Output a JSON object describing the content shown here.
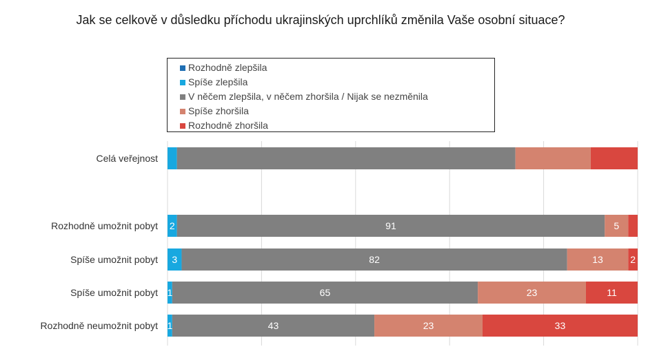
{
  "chart_data": {
    "type": "bar",
    "orientation": "horizontal",
    "stacked": true,
    "title": "Jak se celkově v důsledku příchodu ukrajinských uprchlíků změnila Vaše osobní situace?",
    "categories": [
      "Celá veřejnost",
      "",
      "Rozhodně umožnit pobyt",
      "Spíše umožnit pobyt",
      "Spíše umožnit pobyt",
      "Rozhodně neumožnit pobyt"
    ],
    "xlim": [
      0,
      100
    ],
    "grid": true,
    "legend_position": "top",
    "series": [
      {
        "name": "Rozhodně zlepšila",
        "color": "#1f6fb4",
        "values": [
          0,
          null,
          0,
          0,
          0,
          0
        ]
      },
      {
        "name": "Spíše zlepšila",
        "color": "#18a8e0",
        "values": [
          2,
          null,
          2,
          3,
          1,
          1
        ]
      },
      {
        "name": "V něčem zlepšila, v něčem zhoršila / Nijak se nezměnila",
        "color": "#808080",
        "values": [
          72,
          null,
          91,
          82,
          65,
          43
        ]
      },
      {
        "name": "Spíše zhoršila",
        "color": "#d4836f",
        "values": [
          16,
          null,
          5,
          13,
          23,
          23
        ]
      },
      {
        "name": "Rozhodně zhoršila",
        "color": "#d9473f",
        "values": [
          10,
          null,
          2,
          2,
          11,
          33
        ]
      }
    ],
    "data_labels": [
      [
        "",
        "",
        "",
        "",
        ""
      ],
      [
        "",
        "",
        "",
        "",
        ""
      ],
      [
        "",
        "2",
        "91",
        "5",
        ""
      ],
      [
        "",
        "3",
        "82",
        "13",
        "2"
      ],
      [
        "",
        "1",
        "65",
        "23",
        "11"
      ],
      [
        "",
        "1",
        "43",
        "23",
        "33"
      ]
    ]
  }
}
